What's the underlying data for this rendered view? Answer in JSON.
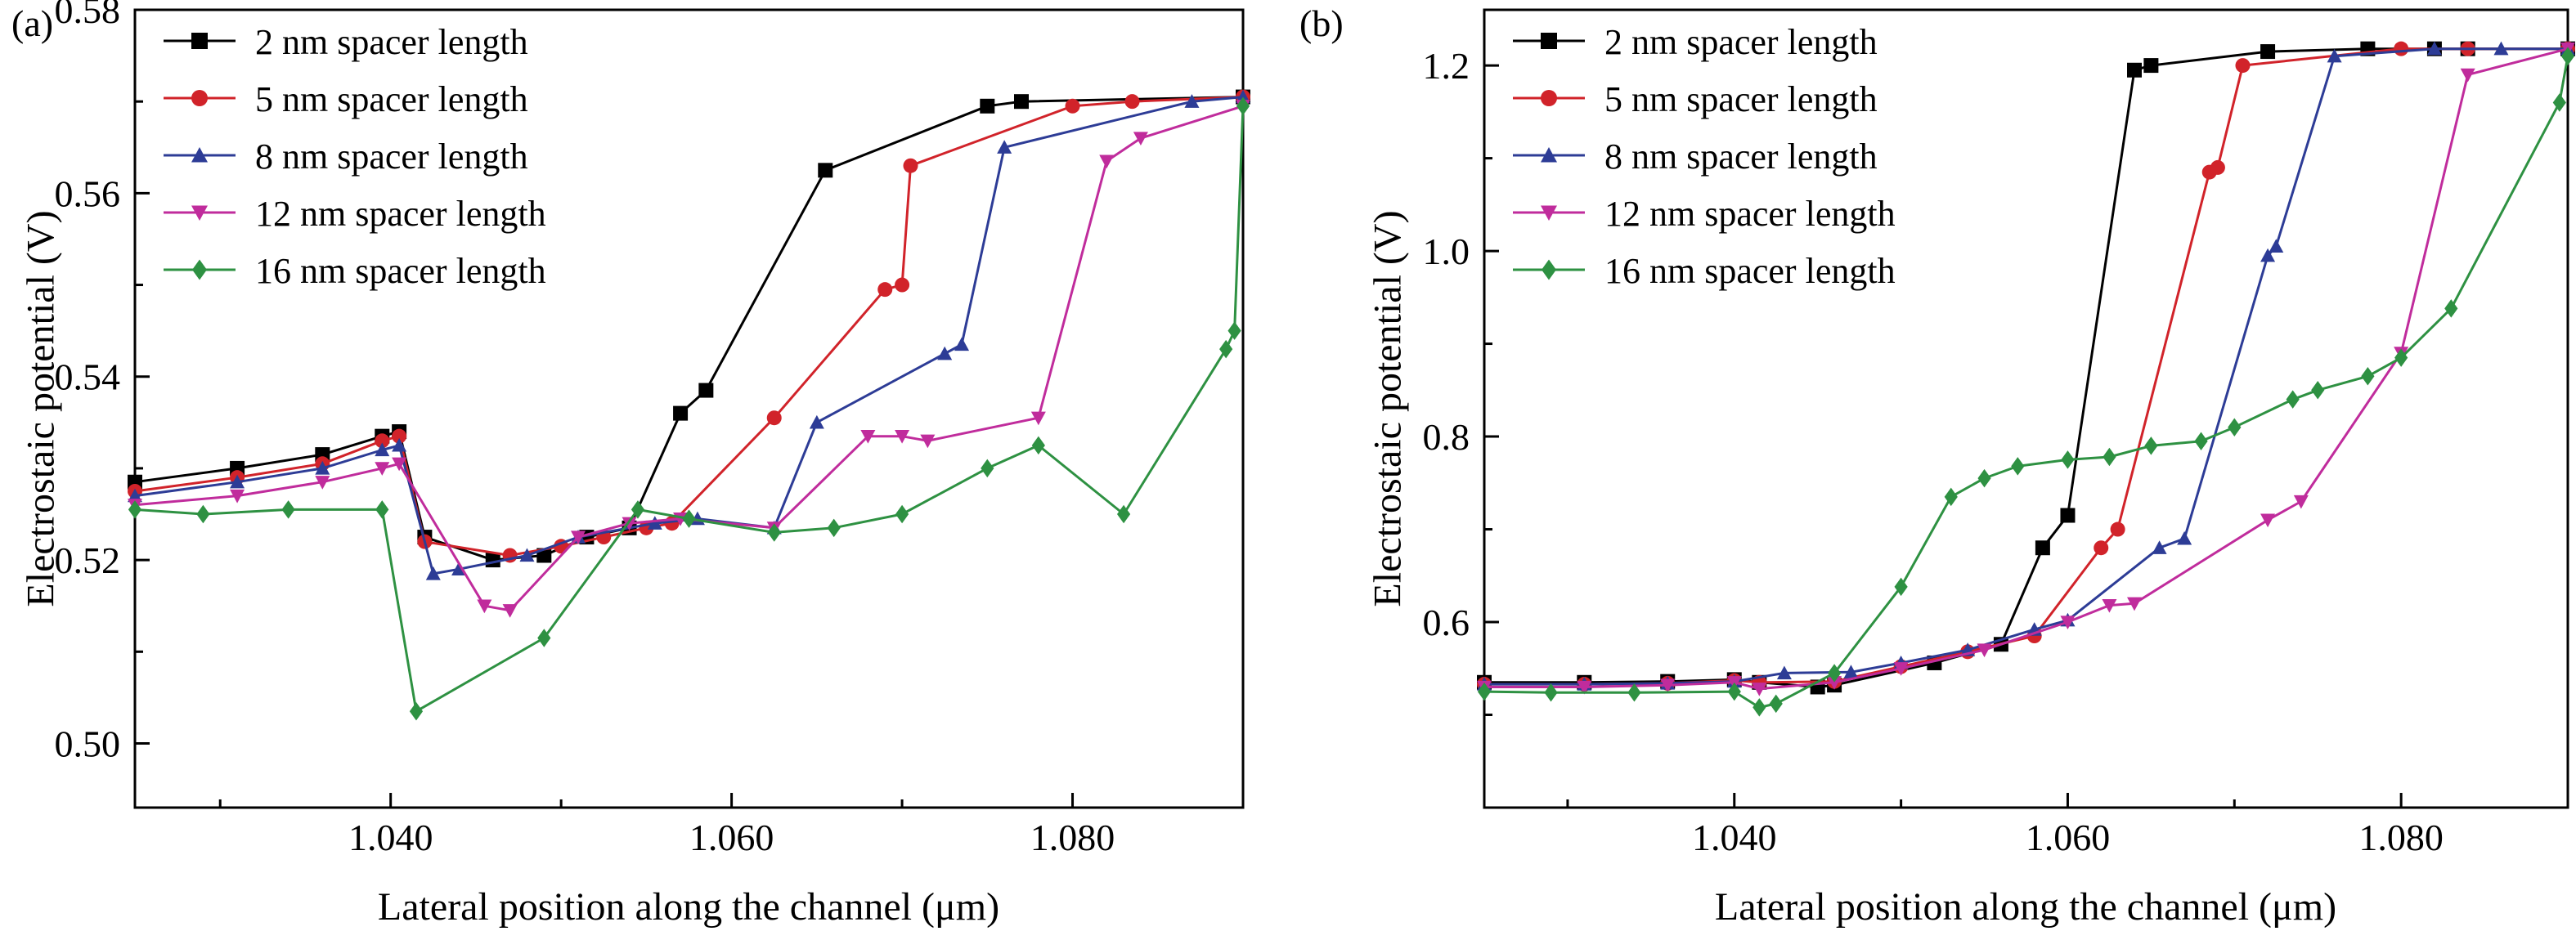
{
  "figure": {
    "background": "#ffffff",
    "axis_color": "#000000"
  },
  "chart_data": [
    {
      "type": "line",
      "panel_label": "(a)",
      "title": "",
      "xlabel": "Lateral position along the channel (μm)",
      "ylabel": "Electrostaic potential (V)",
      "xlim": [
        1.025,
        1.09
      ],
      "ylim": [
        0.493,
        0.58
      ],
      "xticks": [
        1.04,
        1.06,
        1.08
      ],
      "xtick_labels": [
        "1.040",
        "1.060",
        "1.080"
      ],
      "xminorticks": [
        1.03,
        1.05,
        1.07,
        1.09
      ],
      "yticks": [
        0.5,
        0.52,
        0.54,
        0.56,
        0.58
      ],
      "ytick_labels": [
        "0.50",
        "0.52",
        "0.54",
        "0.56",
        "0.58"
      ],
      "yminorticks": [
        0.51,
        0.53,
        0.55,
        0.57
      ],
      "grid": false,
      "legend_position": "top-left",
      "series": [
        {
          "name": "2 nm spacer length",
          "color": "#000000",
          "marker": "square",
          "x": [
            1.025,
            1.031,
            1.036,
            1.0395,
            1.0405,
            1.042,
            1.046,
            1.049,
            1.0515,
            1.054,
            1.057,
            1.0585,
            1.0655,
            1.075,
            1.077,
            1.09
          ],
          "y": [
            0.5285,
            0.53,
            0.5315,
            0.5335,
            0.534,
            0.5225,
            0.52,
            0.5205,
            0.5225,
            0.5235,
            0.536,
            0.5385,
            0.5625,
            0.5695,
            0.57,
            0.5705
          ]
        },
        {
          "name": "5 nm spacer length",
          "color": "#d1232a",
          "marker": "circle",
          "x": [
            1.025,
            1.031,
            1.036,
            1.0395,
            1.0405,
            1.042,
            1.047,
            1.05,
            1.0525,
            1.055,
            1.0565,
            1.0625,
            1.069,
            1.07,
            1.0705,
            1.08,
            1.0835,
            1.09
          ],
          "y": [
            0.5275,
            0.529,
            0.5305,
            0.533,
            0.5335,
            0.522,
            0.5205,
            0.5215,
            0.5225,
            0.5235,
            0.524,
            0.5355,
            0.5495,
            0.55,
            0.563,
            0.5695,
            0.57,
            0.5705
          ]
        },
        {
          "name": "8 nm spacer length",
          "color": "#2d3c96",
          "marker": "triangle-up",
          "x": [
            1.025,
            1.031,
            1.036,
            1.0395,
            1.0405,
            1.0425,
            1.044,
            1.048,
            1.051,
            1.0555,
            1.058,
            1.0625,
            1.065,
            1.0725,
            1.0735,
            1.076,
            1.087,
            1.09
          ],
          "y": [
            0.527,
            0.5285,
            0.53,
            0.532,
            0.5325,
            0.5185,
            0.519,
            0.5205,
            0.5225,
            0.524,
            0.5245,
            0.5235,
            0.535,
            0.5425,
            0.5435,
            0.565,
            0.57,
            0.5705
          ]
        },
        {
          "name": "12 nm spacer length",
          "color": "#c02c9c",
          "marker": "triangle-down",
          "x": [
            1.025,
            1.031,
            1.036,
            1.0395,
            1.0405,
            1.0455,
            1.047,
            1.051,
            1.054,
            1.057,
            1.0625,
            1.068,
            1.07,
            1.0715,
            1.078,
            1.082,
            1.084,
            1.09
          ],
          "y": [
            0.526,
            0.527,
            0.5285,
            0.53,
            0.5305,
            0.515,
            0.5145,
            0.5225,
            0.524,
            0.5245,
            0.5235,
            0.5335,
            0.5335,
            0.533,
            0.5355,
            0.5635,
            0.566,
            0.5695
          ]
        },
        {
          "name": "16 nm spacer length",
          "color": "#2e9142",
          "marker": "diamond",
          "x": [
            1.025,
            1.029,
            1.034,
            1.0395,
            1.0415,
            1.049,
            1.0545,
            1.0575,
            1.0625,
            1.066,
            1.07,
            1.075,
            1.078,
            1.083,
            1.089,
            1.0895,
            1.09
          ],
          "y": [
            0.5255,
            0.525,
            0.5255,
            0.5255,
            0.5035,
            0.5115,
            0.5255,
            0.5245,
            0.523,
            0.5235,
            0.525,
            0.53,
            0.5325,
            0.525,
            0.543,
            0.545,
            0.5695
          ]
        }
      ]
    },
    {
      "type": "line",
      "panel_label": "(b)",
      "title": "",
      "xlabel": "Lateral position along the channel (μm)",
      "ylabel": "Electrostaic potential (V)",
      "xlim": [
        1.025,
        1.09
      ],
      "ylim": [
        0.4,
        1.26
      ],
      "xticks": [
        1.04,
        1.06,
        1.08
      ],
      "xtick_labels": [
        "1.040",
        "1.060",
        "1.080"
      ],
      "xminorticks": [
        1.03,
        1.05,
        1.07,
        1.09
      ],
      "yticks": [
        0.6,
        0.8,
        1.0,
        1.2
      ],
      "ytick_labels": [
        "0.6",
        "0.8",
        "1.0",
        "1.2"
      ],
      "yminorticks": [
        0.5,
        0.7,
        0.9,
        1.1
      ],
      "grid": false,
      "legend_position": "top-left",
      "series": [
        {
          "name": "2 nm spacer length",
          "color": "#000000",
          "marker": "square",
          "x": [
            1.025,
            1.031,
            1.036,
            1.04,
            1.0415,
            1.045,
            1.046,
            1.052,
            1.056,
            1.0585,
            1.06,
            1.064,
            1.065,
            1.072,
            1.078,
            1.082,
            1.084,
            1.09
          ],
          "y": [
            0.535,
            0.535,
            0.536,
            0.538,
            0.535,
            0.53,
            0.532,
            0.556,
            0.576,
            0.68,
            0.715,
            1.195,
            1.2,
            1.215,
            1.218,
            1.218,
            1.218,
            1.218
          ]
        },
        {
          "name": "5 nm spacer length",
          "color": "#d1232a",
          "marker": "circle",
          "x": [
            1.025,
            1.031,
            1.036,
            1.04,
            1.0415,
            1.046,
            1.05,
            1.054,
            1.058,
            1.062,
            1.063,
            1.0685,
            1.069,
            1.0705,
            1.08,
            1.084,
            1.09
          ],
          "y": [
            0.533,
            0.533,
            0.534,
            0.537,
            0.535,
            0.536,
            0.552,
            0.568,
            0.585,
            0.68,
            0.7,
            1.085,
            1.09,
            1.2,
            1.218,
            1.218,
            1.218
          ]
        },
        {
          "name": "8 nm spacer length",
          "color": "#2d3c96",
          "marker": "triangle-up",
          "x": [
            1.025,
            1.031,
            1.036,
            1.04,
            1.043,
            1.047,
            1.05,
            1.054,
            1.058,
            1.06,
            1.0655,
            1.067,
            1.072,
            1.0725,
            1.076,
            1.082,
            1.086,
            1.09
          ],
          "y": [
            0.533,
            0.533,
            0.534,
            0.536,
            0.545,
            0.546,
            0.556,
            0.57,
            0.592,
            0.602,
            0.68,
            0.69,
            0.995,
            1.005,
            1.21,
            1.218,
            1.218,
            1.218
          ]
        },
        {
          "name": "12 nm spacer length",
          "color": "#c02c9c",
          "marker": "triangle-down",
          "x": [
            1.025,
            1.031,
            1.036,
            1.04,
            1.0415,
            1.046,
            1.05,
            1.055,
            1.06,
            1.0625,
            1.064,
            1.072,
            1.074,
            1.08,
            1.084,
            1.09
          ],
          "y": [
            0.53,
            0.53,
            0.532,
            0.535,
            0.528,
            0.535,
            0.55,
            0.57,
            0.6,
            0.618,
            0.62,
            0.71,
            0.73,
            0.89,
            1.19,
            1.218
          ]
        },
        {
          "name": "16 nm spacer length",
          "color": "#2e9142",
          "marker": "diamond",
          "x": [
            1.025,
            1.029,
            1.034,
            1.04,
            1.0415,
            1.0425,
            1.046,
            1.05,
            1.053,
            1.055,
            1.057,
            1.06,
            1.0625,
            1.065,
            1.068,
            1.07,
            1.0735,
            1.075,
            1.078,
            1.08,
            1.083,
            1.0895,
            1.09
          ],
          "y": [
            0.525,
            0.524,
            0.524,
            0.525,
            0.508,
            0.512,
            0.545,
            0.638,
            0.735,
            0.755,
            0.768,
            0.775,
            0.778,
            0.79,
            0.795,
            0.81,
            0.84,
            0.85,
            0.865,
            0.885,
            0.938,
            1.16,
            1.21
          ]
        }
      ]
    }
  ]
}
